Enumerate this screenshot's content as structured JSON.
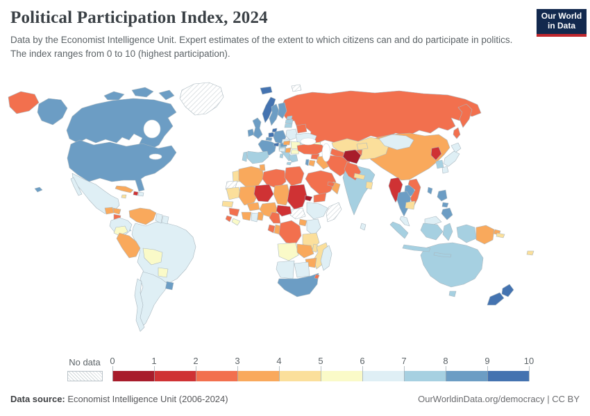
{
  "header": {
    "title": "Political Participation Index, 2024",
    "subtitle": "Data by the Economist Intelligence Unit. Expert estimates of the extent to which citizens can and do participate in politics. The index ranges from 0 to 10 (highest participation).",
    "logo": {
      "line1": "Our World",
      "line2": "in Data",
      "bg_color": "#12294E",
      "stripe_color": "#C0272D"
    }
  },
  "legend": {
    "no_data_label": "No data",
    "tick_labels": [
      "0",
      "1",
      "2",
      "3",
      "4",
      "5",
      "6",
      "7",
      "8",
      "9",
      "10"
    ]
  },
  "footer": {
    "source_label": "Data source:",
    "source_value": " Economist Intelligence Unit (2006-2024)",
    "right_text": "OurWorldinData.org/democracy | CC BY"
  },
  "chart_data": {
    "type": "choropleth",
    "title": "Political Participation Index, 2024",
    "year": 2024,
    "value_range": [
      0,
      10
    ],
    "legend_position": "bottom",
    "colors": [
      "#A81C2B",
      "#CF3234",
      "#F2704E",
      "#F9A95C",
      "#FBDF9B",
      "#FAFAC8",
      "#DFEFF5",
      "#A6D0E1",
      "#6C9DC4",
      "#4473B0"
    ],
    "no_data": {
      "label": "No data",
      "fill": "hatched"
    },
    "countries": [
      {
        "id": "canada",
        "name": "Canada",
        "value": 8.9
      },
      {
        "id": "usa",
        "name": "United States",
        "value": 8.3
      },
      {
        "id": "greenland",
        "name": "Greenland",
        "value": null
      },
      {
        "id": "mexico",
        "name": "Mexico",
        "value": 6.7
      },
      {
        "id": "guatemala",
        "name": "Guatemala",
        "value": 3.3
      },
      {
        "id": "honduras",
        "name": "Honduras",
        "value": 3.9
      },
      {
        "id": "nicaragua",
        "name": "Nicaragua",
        "value": 2.8
      },
      {
        "id": "costa-rica",
        "name": "Costa Rica",
        "value": 8.3
      },
      {
        "id": "panama",
        "name": "Panama",
        "value": 7.2
      },
      {
        "id": "cuba",
        "name": "Cuba",
        "value": 3.3
      },
      {
        "id": "jamaica",
        "name": "Jamaica",
        "value": 4.7
      },
      {
        "id": "haiti",
        "name": "Haiti",
        "value": 1.7
      },
      {
        "id": "dominican-republic",
        "name": "Dominican Republic",
        "value": 6.7
      },
      {
        "id": "colombia",
        "name": "Colombia",
        "value": 6.1
      },
      {
        "id": "venezuela",
        "name": "Venezuela",
        "value": 3.9
      },
      {
        "id": "guyana",
        "name": "Guyana",
        "value": 6.1
      },
      {
        "id": "suriname",
        "name": "Suriname",
        "value": 6.1
      },
      {
        "id": "ecuador",
        "name": "Ecuador",
        "value": 5.6
      },
      {
        "id": "peru",
        "name": "Peru",
        "value": 3.9
      },
      {
        "id": "brazil",
        "name": "Brazil",
        "value": 6.1
      },
      {
        "id": "bolivia",
        "name": "Bolivia",
        "value": 5.6
      },
      {
        "id": "paraguay",
        "name": "Paraguay",
        "value": 5.0
      },
      {
        "id": "uruguay",
        "name": "Uruguay",
        "value": 8.3
      },
      {
        "id": "argentina",
        "name": "Argentina",
        "value": 6.7
      },
      {
        "id": "chile",
        "name": "Chile",
        "value": 6.7
      },
      {
        "id": "iceland",
        "name": "Iceland",
        "value": 9.4
      },
      {
        "id": "norway",
        "name": "Norway",
        "value": 10
      },
      {
        "id": "sweden",
        "name": "Sweden",
        "value": 8.3
      },
      {
        "id": "finland",
        "name": "Finland",
        "value": 8.3
      },
      {
        "id": "denmark",
        "name": "Denmark",
        "value": 9.4
      },
      {
        "id": "uk",
        "name": "United Kingdom",
        "value": 8.3
      },
      {
        "id": "ireland",
        "name": "Ireland",
        "value": 8.3
      },
      {
        "id": "netherlands",
        "name": "Netherlands",
        "value": 9.4
      },
      {
        "id": "belgium",
        "name": "Belgium",
        "value": 8.3
      },
      {
        "id": "germany",
        "name": "Germany",
        "value": 8.3
      },
      {
        "id": "france",
        "name": "France",
        "value": 8.3
      },
      {
        "id": "spain",
        "name": "Spain",
        "value": 7.2
      },
      {
        "id": "portugal",
        "name": "Portugal",
        "value": 7.2
      },
      {
        "id": "italy",
        "name": "Italy",
        "value": 7.2
      },
      {
        "id": "switzerland",
        "name": "Switzerland",
        "value": 9.4
      },
      {
        "id": "austria",
        "name": "Austria",
        "value": 8.3
      },
      {
        "id": "czechia",
        "name": "Czechia",
        "value": 6.7
      },
      {
        "id": "poland",
        "name": "Poland",
        "value": 6.1
      },
      {
        "id": "estonia",
        "name": "Estonia",
        "value": 7.2
      },
      {
        "id": "latvia",
        "name": "Latvia",
        "value": 7.2
      },
      {
        "id": "lithuania",
        "name": "Lithuania",
        "value": 7.2
      },
      {
        "id": "belarus",
        "name": "Belarus",
        "value": 2.8
      },
      {
        "id": "ukraine",
        "name": "Ukraine",
        "value": 6.1
      },
      {
        "id": "romania",
        "name": "Romania",
        "value": 5.6
      },
      {
        "id": "hungary",
        "name": "Hungary",
        "value": 3.9
      },
      {
        "id": "croatia",
        "name": "Croatia",
        "value": 6.1
      },
      {
        "id": "serbia",
        "name": "Serbia",
        "value": 3.3
      },
      {
        "id": "bulgaria",
        "name": "Bulgaria",
        "value": 5.6
      },
      {
        "id": "greece",
        "name": "Greece",
        "value": 7.2
      },
      {
        "id": "russia",
        "name": "Russia",
        "value": 2.2
      },
      {
        "id": "kazakhstan",
        "name": "Kazakhstan",
        "value": 4.4
      },
      {
        "id": "uzbekistan",
        "name": "Uzbekistan",
        "value": 2.2
      },
      {
        "id": "turkmenistan",
        "name": "Turkmenistan",
        "value": 2.2
      },
      {
        "id": "kyrgyzstan",
        "name": "Kyrgyzstan",
        "value": 4.4
      },
      {
        "id": "tajikistan",
        "name": "Tajikistan",
        "value": 2.2
      },
      {
        "id": "georgia",
        "name": "Georgia",
        "value": 5.6
      },
      {
        "id": "azerbaijan",
        "name": "Azerbaijan",
        "value": 2.8
      },
      {
        "id": "turkey",
        "name": "Turkey",
        "value": 2.8
      },
      {
        "id": "syria",
        "name": "Syria",
        "value": 2.2
      },
      {
        "id": "israel",
        "name": "Israel",
        "value": 8.9
      },
      {
        "id": "jordan",
        "name": "Jordan",
        "value": 3.3
      },
      {
        "id": "iraq",
        "name": "Iraq",
        "value": 3.3
      },
      {
        "id": "iran",
        "name": "Iran",
        "value": 2.8
      },
      {
        "id": "saudi-arabia",
        "name": "Saudi Arabia",
        "value": 2.2
      },
      {
        "id": "yemen",
        "name": "Yemen",
        "value": 2.2
      },
      {
        "id": "oman",
        "name": "Oman",
        "value": 3.3
      },
      {
        "id": "uae",
        "name": "United Arab Emirates",
        "value": 2.2
      },
      {
        "id": "afghanistan",
        "name": "Afghanistan",
        "value": 0.6
      },
      {
        "id": "pakistan",
        "name": "Pakistan",
        "value": 2.8
      },
      {
        "id": "india",
        "name": "India",
        "value": 7.2
      },
      {
        "id": "nepal",
        "name": "Nepal",
        "value": 4.7
      },
      {
        "id": "bangladesh",
        "name": "Bangladesh",
        "value": 4.4
      },
      {
        "id": "sri-lanka",
        "name": "Sri Lanka",
        "value": 6.1
      },
      {
        "id": "myanmar",
        "name": "Myanmar",
        "value": 1.7
      },
      {
        "id": "thailand",
        "name": "Thailand",
        "value": 8.3
      },
      {
        "id": "laos",
        "name": "Laos",
        "value": 8.3
      },
      {
        "id": "vietnam",
        "name": "Vietnam",
        "value": 2.8
      },
      {
        "id": "cambodia",
        "name": "Cambodia",
        "value": 4.4
      },
      {
        "id": "malaysia",
        "name": "Malaysia",
        "value": 6.7
      },
      {
        "id": "indonesia",
        "name": "Indonesia",
        "value": 7.2
      },
      {
        "id": "philippines",
        "name": "Philippines",
        "value": 8.3
      },
      {
        "id": "taiwan",
        "name": "Taiwan",
        "value": 8.3
      },
      {
        "id": "china",
        "name": "China",
        "value": 3.3
      },
      {
        "id": "mongolia",
        "name": "Mongolia",
        "value": 6.1
      },
      {
        "id": "north-korea",
        "name": "North Korea",
        "value": 1.7
      },
      {
        "id": "south-korea",
        "name": "South Korea",
        "value": 7.2
      },
      {
        "id": "japan",
        "name": "Japan",
        "value": 6.7
      },
      {
        "id": "morocco",
        "name": "Morocco",
        "value": 4.4
      },
      {
        "id": "western-sahara",
        "name": "Western Sahara",
        "value": null
      },
      {
        "id": "algeria",
        "name": "Algeria",
        "value": 3.3
      },
      {
        "id": "tunisia",
        "name": "Tunisia",
        "value": 3.3
      },
      {
        "id": "libya",
        "name": "Libya",
        "value": 2.8
      },
      {
        "id": "egypt",
        "name": "Egypt",
        "value": 2.8
      },
      {
        "id": "mauritania",
        "name": "Mauritania",
        "value": 4.4
      },
      {
        "id": "senegal",
        "name": "Senegal",
        "value": 4.4
      },
      {
        "id": "guinea",
        "name": "Guinea",
        "value": 2.8
      },
      {
        "id": "sierra-leone",
        "name": "Sierra Leone",
        "value": 2.8
      },
      {
        "id": "liberia",
        "name": "Liberia",
        "value": 5.6
      },
      {
        "id": "mali",
        "name": "Mali",
        "value": 3.3
      },
      {
        "id": "burkina-faso",
        "name": "Burkina Faso",
        "value": 3.3
      },
      {
        "id": "ivory-coast",
        "name": "Cote d'Ivoire",
        "value": 3.3
      },
      {
        "id": "ghana",
        "name": "Ghana",
        "value": 6.1
      },
      {
        "id": "benin",
        "name": "Benin",
        "value": 3.3
      },
      {
        "id": "niger",
        "name": "Niger",
        "value": 1.1
      },
      {
        "id": "nigeria",
        "name": "Nigeria",
        "value": 3.3
      },
      {
        "id": "chad",
        "name": "Chad",
        "value": 3.3
      },
      {
        "id": "sudan",
        "name": "Sudan",
        "value": 1.1
      },
      {
        "id": "eritrea",
        "name": "Eritrea",
        "value": 0.6
      },
      {
        "id": "ethiopia",
        "name": "Ethiopia",
        "value": 6.1
      },
      {
        "id": "somalia",
        "name": "Somalia",
        "value": null
      },
      {
        "id": "south-sudan",
        "name": "South Sudan",
        "value": null
      },
      {
        "id": "central-african-republic",
        "name": "Central African Republic",
        "value": 1.1
      },
      {
        "id": "cameroon",
        "name": "Cameroon",
        "value": 2.8
      },
      {
        "id": "gabon",
        "name": "Gabon",
        "value": 2.8
      },
      {
        "id": "congo",
        "name": "Congo",
        "value": 3.3
      },
      {
        "id": "uganda",
        "name": "Uganda",
        "value": 3.3
      },
      {
        "id": "kenya",
        "name": "Kenya",
        "value": 6.1
      },
      {
        "id": "drc",
        "name": "Democratic Republic of Congo",
        "value": 2.8
      },
      {
        "id": "tanzania",
        "name": "Tanzania",
        "value": 4.7
      },
      {
        "id": "angola",
        "name": "Angola",
        "value": 5.6
      },
      {
        "id": "zambia",
        "name": "Zambia",
        "value": 3.3
      },
      {
        "id": "malawi",
        "name": "Malawi",
        "value": 4.4
      },
      {
        "id": "mozambique",
        "name": "Mozambique",
        "value": 4.4
      },
      {
        "id": "zimbabwe",
        "name": "Zimbabwe",
        "value": 3.3
      },
      {
        "id": "namibia",
        "name": "Namibia",
        "value": 6.1
      },
      {
        "id": "botswana",
        "name": "Botswana",
        "value": 6.1
      },
      {
        "id": "south-africa",
        "name": "South Africa",
        "value": 8.3
      },
      {
        "id": "eswatini",
        "name": "Eswatini",
        "value": 2.2
      },
      {
        "id": "madagascar",
        "name": "Madagascar",
        "value": 6.1
      },
      {
        "id": "svalbard",
        "name": "Svalbard",
        "value": null
      },
      {
        "id": "australia",
        "name": "Australia",
        "value": 7.8
      },
      {
        "id": "new-zealand",
        "name": "New Zealand",
        "value": 9.4
      },
      {
        "id": "papua-new-guinea",
        "name": "Papua New Guinea",
        "value": 3.3
      },
      {
        "id": "fiji",
        "name": "Fiji",
        "value": 4.4
      },
      {
        "id": "solomon-islands",
        "name": "Solomon Islands",
        "value": 4.4
      }
    ]
  }
}
